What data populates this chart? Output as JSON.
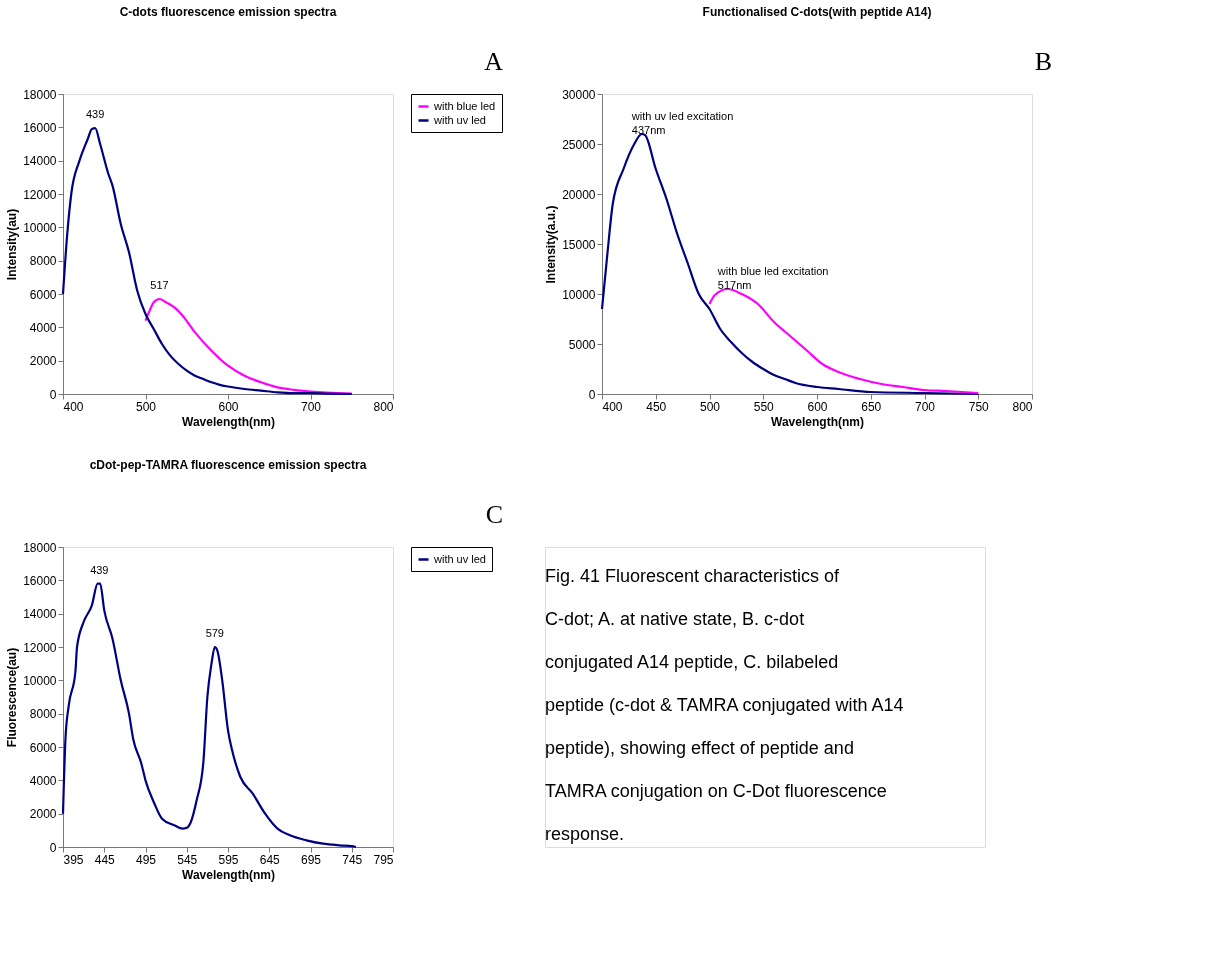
{
  "chart_data": [
    {
      "type": "line",
      "title": "C-dots fluorescence emission spectra",
      "xlabel": "Wavelength(nm)",
      "ylabel": "Intensity(au)",
      "xlim": [
        400,
        800
      ],
      "xticks": [
        400,
        500,
        600,
        700,
        800
      ],
      "ylim": [
        0,
        18000
      ],
      "yticks": [
        0,
        2000,
        4000,
        6000,
        8000,
        10000,
        12000,
        14000,
        16000,
        18000
      ],
      "grid": false,
      "legend": "right",
      "series": [
        {
          "name": "with blue led",
          "color": "#ff00ff",
          "x": [
            500,
            505,
            510,
            517,
            525,
            535,
            545,
            560,
            580,
            600,
            620,
            640,
            660,
            680,
            700,
            720,
            750
          ],
          "values": [
            4400,
            5000,
            5500,
            5700,
            5500,
            5200,
            4700,
            3700,
            2600,
            1700,
            1100,
            700,
            400,
            250,
            150,
            80,
            20
          ]
        },
        {
          "name": "with uv led",
          "color": "#000080",
          "x": [
            400,
            405,
            410,
            420,
            430,
            435,
            439,
            445,
            455,
            460,
            470,
            480,
            490,
            500,
            510,
            520,
            530,
            540,
            550,
            560,
            570,
            580,
            590,
            600,
            620,
            640,
            660,
            680,
            700,
            720,
            750
          ],
          "values": [
            6000,
            9500,
            12000,
            14000,
            15300,
            15900,
            15950,
            15000,
            13200,
            12500,
            10200,
            8500,
            6200,
            4800,
            3900,
            3000,
            2300,
            1800,
            1400,
            1100,
            900,
            700,
            550,
            450,
            300,
            200,
            100,
            50,
            50,
            20,
            0
          ]
        }
      ],
      "annotations": [
        "A",
        {
          "text": "439",
          "x": 439,
          "y": 15950
        },
        {
          "text": "517",
          "x": 517,
          "y": 5700
        }
      ]
    },
    {
      "type": "line",
      "title": "Functionalised C-dots(with peptide A14)",
      "xlabel": "Wavelength(nm)",
      "ylabel": "Intensity(a.u.)",
      "xlim": [
        400,
        800
      ],
      "xticks": [
        400,
        450,
        500,
        550,
        600,
        650,
        700,
        750,
        800
      ],
      "ylim": [
        0,
        30000
      ],
      "yticks": [
        0,
        5000,
        10000,
        15000,
        20000,
        25000,
        30000
      ],
      "grid": false,
      "legend": false,
      "series": [
        {
          "color": "#000080",
          "x": [
            400,
            405,
            410,
            420,
            430,
            437,
            440,
            450,
            460,
            470,
            480,
            490,
            500,
            510,
            520,
            530,
            540,
            550,
            560,
            570,
            580,
            600,
            620,
            650,
            700,
            750
          ],
          "values": [
            8500,
            14000,
            19000,
            22500,
            25000,
            26000,
            25900,
            22500,
            19500,
            16000,
            13000,
            10000,
            8500,
            6500,
            5200,
            4100,
            3200,
            2500,
            1900,
            1500,
            1100,
            700,
            500,
            200,
            100,
            0
          ]
        },
        {
          "color": "#ff00ff",
          "x": [
            500,
            505,
            517,
            530,
            545,
            560,
            575,
            590,
            605,
            620,
            640,
            660,
            680,
            700,
            720,
            750
          ],
          "values": [
            9000,
            9900,
            10500,
            10000,
            9000,
            7200,
            5800,
            4400,
            3000,
            2200,
            1500,
            1000,
            700,
            400,
            300,
            100
          ]
        }
      ],
      "annotations": [
        "B",
        {
          "text": "with uv led excitation\n437nm",
          "x": 437,
          "y": 26000
        },
        {
          "text": "with blue led excitation\n517nm",
          "x": 517,
          "y": 10500
        }
      ]
    },
    {
      "type": "line",
      "title": "cDot-pep-TAMRA fluorescence emission spectra",
      "xlabel": "Wavelength(nm)",
      "ylabel": "Fluorescence(au)",
      "xlim": [
        395,
        795
      ],
      "xticks": [
        395,
        445,
        495,
        545,
        595,
        645,
        695,
        745,
        795
      ],
      "ylim": [
        0,
        18000
      ],
      "yticks": [
        0,
        2000,
        4000,
        6000,
        8000,
        10000,
        12000,
        14000,
        16000,
        18000
      ],
      "grid": false,
      "legend": "right",
      "series": [
        {
          "name": "with uv led",
          "color": "#000080",
          "x": [
            395,
            398,
            402,
            410,
            412,
            420,
            430,
            437,
            440,
            445,
            455,
            465,
            475,
            480,
            490,
            495,
            505,
            515,
            530,
            540,
            545,
            550,
            557,
            565,
            570,
            575,
            579,
            582,
            588,
            595,
            600,
            610,
            625,
            640,
            655,
            670,
            690,
            710,
            730,
            745,
            750
          ],
          "values": [
            2000,
            6500,
            8500,
            10500,
            12000,
            13500,
            14500,
            15800,
            15800,
            14200,
            12500,
            10000,
            8000,
            6500,
            5000,
            4000,
            2700,
            1700,
            1300,
            1100,
            1150,
            1500,
            2800,
            5000,
            9000,
            11000,
            12000,
            11800,
            10000,
            7000,
            5800,
            4200,
            3200,
            2000,
            1100,
            700,
            400,
            200,
            100,
            50,
            0
          ]
        }
      ],
      "annotations": [
        "C",
        {
          "text": "439",
          "x": 439,
          "y": 15800
        },
        {
          "text": "579",
          "x": 579,
          "y": 12000
        }
      ]
    },
    {
      "type": "other",
      "annotations": [
        "Fig. 41 Fluorescent characteristics of C-dot; A. at native state, B. c-dot conjugated A14 peptide, C. bilabeled peptide (c-dot & TAMRA conjugated with A14 peptide), showing effect of peptide and TAMRA conjugation on C-Dot fluorescence response."
      ]
    }
  ]
}
